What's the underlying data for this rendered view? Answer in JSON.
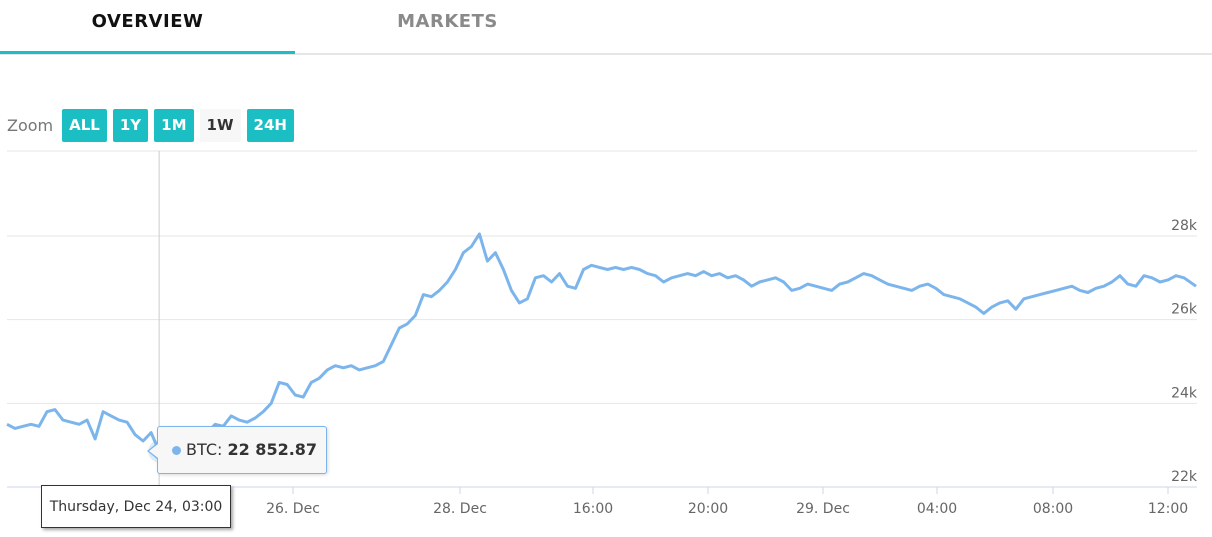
{
  "tabs": [
    {
      "label": "OVERVIEW",
      "active": true
    },
    {
      "label": "MARKETS",
      "active": false
    }
  ],
  "zoom": {
    "label": "Zoom",
    "buttons": [
      {
        "label": "ALL",
        "active": true
      },
      {
        "label": "1Y",
        "active": true
      },
      {
        "label": "1M",
        "active": true
      },
      {
        "label": "1W",
        "active": false
      },
      {
        "label": "24H",
        "active": true
      }
    ]
  },
  "tooltip": {
    "series": "BTC",
    "value": "22 852.87",
    "date": "Thursday, Dec 24, 03:00"
  },
  "colors": {
    "accent": "#1bbfc3",
    "series": "#7cb5ec"
  },
  "chart_data": {
    "type": "line",
    "title": "",
    "xlabel": "",
    "ylabel": "",
    "ylim": [
      21800,
      29000
    ],
    "xlim": [
      0,
      148.5
    ],
    "x_unit": "hours since Dec 23, 00:00 (approx.)",
    "grid": true,
    "y_ticks": [
      {
        "value": 22000,
        "label": "22k"
      },
      {
        "value": 24000,
        "label": "24k"
      },
      {
        "value": 26000,
        "label": "26k"
      },
      {
        "value": 28000,
        "label": "28k"
      }
    ],
    "x_ticks": [
      {
        "x": 72,
        "label": "26. Dec"
      },
      {
        "x": 96,
        "label": "28. Dec"
      },
      {
        "x": 112,
        "label": "16:00"
      },
      {
        "x": 116,
        "label": "20:00"
      },
      {
        "x": 120,
        "label": "29. Dec"
      },
      {
        "x": 124,
        "label": "04:00"
      },
      {
        "x": 128,
        "label": "08:00"
      },
      {
        "x": 132,
        "label": "12:00"
      }
    ],
    "series": [
      {
        "name": "BTC",
        "color": "#7cb5ec",
        "points": [
          [
            0,
            23500
          ],
          [
            1,
            23400
          ],
          [
            2,
            23450
          ],
          [
            3,
            23500
          ],
          [
            4,
            23450
          ],
          [
            5,
            23800
          ],
          [
            6,
            23850
          ],
          [
            7,
            23600
          ],
          [
            8,
            23550
          ],
          [
            9,
            23500
          ],
          [
            10,
            23600
          ],
          [
            11,
            23150
          ],
          [
            12,
            23800
          ],
          [
            13,
            23700
          ],
          [
            14,
            23600
          ],
          [
            15,
            23550
          ],
          [
            16,
            23250
          ],
          [
            17,
            23100
          ],
          [
            18,
            23300
          ],
          [
            19,
            22852.87
          ],
          [
            20,
            23000
          ],
          [
            21,
            22900
          ],
          [
            22,
            23350
          ],
          [
            23,
            23100
          ],
          [
            24,
            23150
          ],
          [
            25,
            23300
          ],
          [
            26,
            23500
          ],
          [
            27,
            23450
          ],
          [
            28,
            23700
          ],
          [
            29,
            23600
          ],
          [
            30,
            23550
          ],
          [
            31,
            23650
          ],
          [
            32,
            23800
          ],
          [
            33,
            24000
          ],
          [
            34,
            24500
          ],
          [
            35,
            24450
          ],
          [
            36,
            24200
          ],
          [
            37,
            24150
          ],
          [
            38,
            24500
          ],
          [
            39,
            24600
          ],
          [
            40,
            24800
          ],
          [
            41,
            24900
          ],
          [
            42,
            24850
          ],
          [
            43,
            24900
          ],
          [
            44,
            24800
          ],
          [
            45,
            24850
          ],
          [
            46,
            24900
          ],
          [
            47,
            25000
          ],
          [
            48,
            25400
          ],
          [
            49,
            25800
          ],
          [
            50,
            25900
          ],
          [
            51,
            26100
          ],
          [
            52,
            26600
          ],
          [
            53,
            26550
          ],
          [
            54,
            26700
          ],
          [
            55,
            26900
          ],
          [
            56,
            27200
          ],
          [
            57,
            27600
          ],
          [
            58,
            27750
          ],
          [
            59,
            28050
          ],
          [
            60,
            27400
          ],
          [
            61,
            27600
          ],
          [
            62,
            27200
          ],
          [
            63,
            26700
          ],
          [
            64,
            26400
          ],
          [
            65,
            26500
          ],
          [
            66,
            27000
          ],
          [
            67,
            27050
          ],
          [
            68,
            26900
          ],
          [
            69,
            27100
          ],
          [
            70,
            26800
          ],
          [
            71,
            26750
          ],
          [
            72,
            27200
          ],
          [
            73,
            27300
          ],
          [
            74,
            27250
          ],
          [
            75,
            27200
          ],
          [
            76,
            27250
          ],
          [
            77,
            27200
          ],
          [
            78,
            27250
          ],
          [
            79,
            27200
          ],
          [
            80,
            27100
          ],
          [
            81,
            27050
          ],
          [
            82,
            26900
          ],
          [
            83,
            27000
          ],
          [
            84,
            27050
          ],
          [
            85,
            27100
          ],
          [
            86,
            27050
          ],
          [
            87,
            27150
          ],
          [
            88,
            27050
          ],
          [
            89,
            27100
          ],
          [
            90,
            27000
          ],
          [
            91,
            27050
          ],
          [
            92,
            26950
          ],
          [
            93,
            26800
          ],
          [
            94,
            26900
          ],
          [
            95,
            26950
          ],
          [
            96,
            27000
          ],
          [
            97,
            26900
          ],
          [
            98,
            26700
          ],
          [
            99,
            26750
          ],
          [
            100,
            26850
          ],
          [
            101,
            26800
          ],
          [
            102,
            26750
          ],
          [
            103,
            26700
          ],
          [
            104,
            26850
          ],
          [
            105,
            26900
          ],
          [
            106,
            27000
          ],
          [
            107,
            27100
          ],
          [
            108,
            27050
          ],
          [
            109,
            26950
          ],
          [
            110,
            26850
          ],
          [
            111,
            26800
          ],
          [
            112,
            26750
          ],
          [
            113,
            26700
          ],
          [
            114,
            26800
          ],
          [
            115,
            26850
          ],
          [
            116,
            26750
          ],
          [
            117,
            26600
          ],
          [
            118,
            26550
          ],
          [
            119,
            26500
          ],
          [
            120,
            26400
          ],
          [
            121,
            26300
          ],
          [
            122,
            26150
          ],
          [
            123,
            26300
          ],
          [
            124,
            26400
          ],
          [
            125,
            26450
          ],
          [
            126,
            26250
          ],
          [
            127,
            26500
          ],
          [
            128,
            26550
          ],
          [
            129,
            26600
          ],
          [
            130,
            26650
          ],
          [
            131,
            26700
          ],
          [
            132,
            26750
          ],
          [
            133,
            26800
          ],
          [
            134,
            26700
          ],
          [
            135,
            26650
          ],
          [
            136,
            26750
          ],
          [
            137,
            26800
          ],
          [
            138,
            26900
          ],
          [
            139,
            27050
          ],
          [
            140,
            26850
          ],
          [
            141,
            26800
          ],
          [
            142,
            27050
          ],
          [
            143,
            27000
          ],
          [
            144,
            26900
          ],
          [
            145,
            26950
          ],
          [
            146,
            27050
          ],
          [
            147,
            27000
          ],
          [
            148.5,
            26800
          ]
        ]
      }
    ],
    "crosshair": {
      "x": 19,
      "y": 22852.87
    }
  }
}
